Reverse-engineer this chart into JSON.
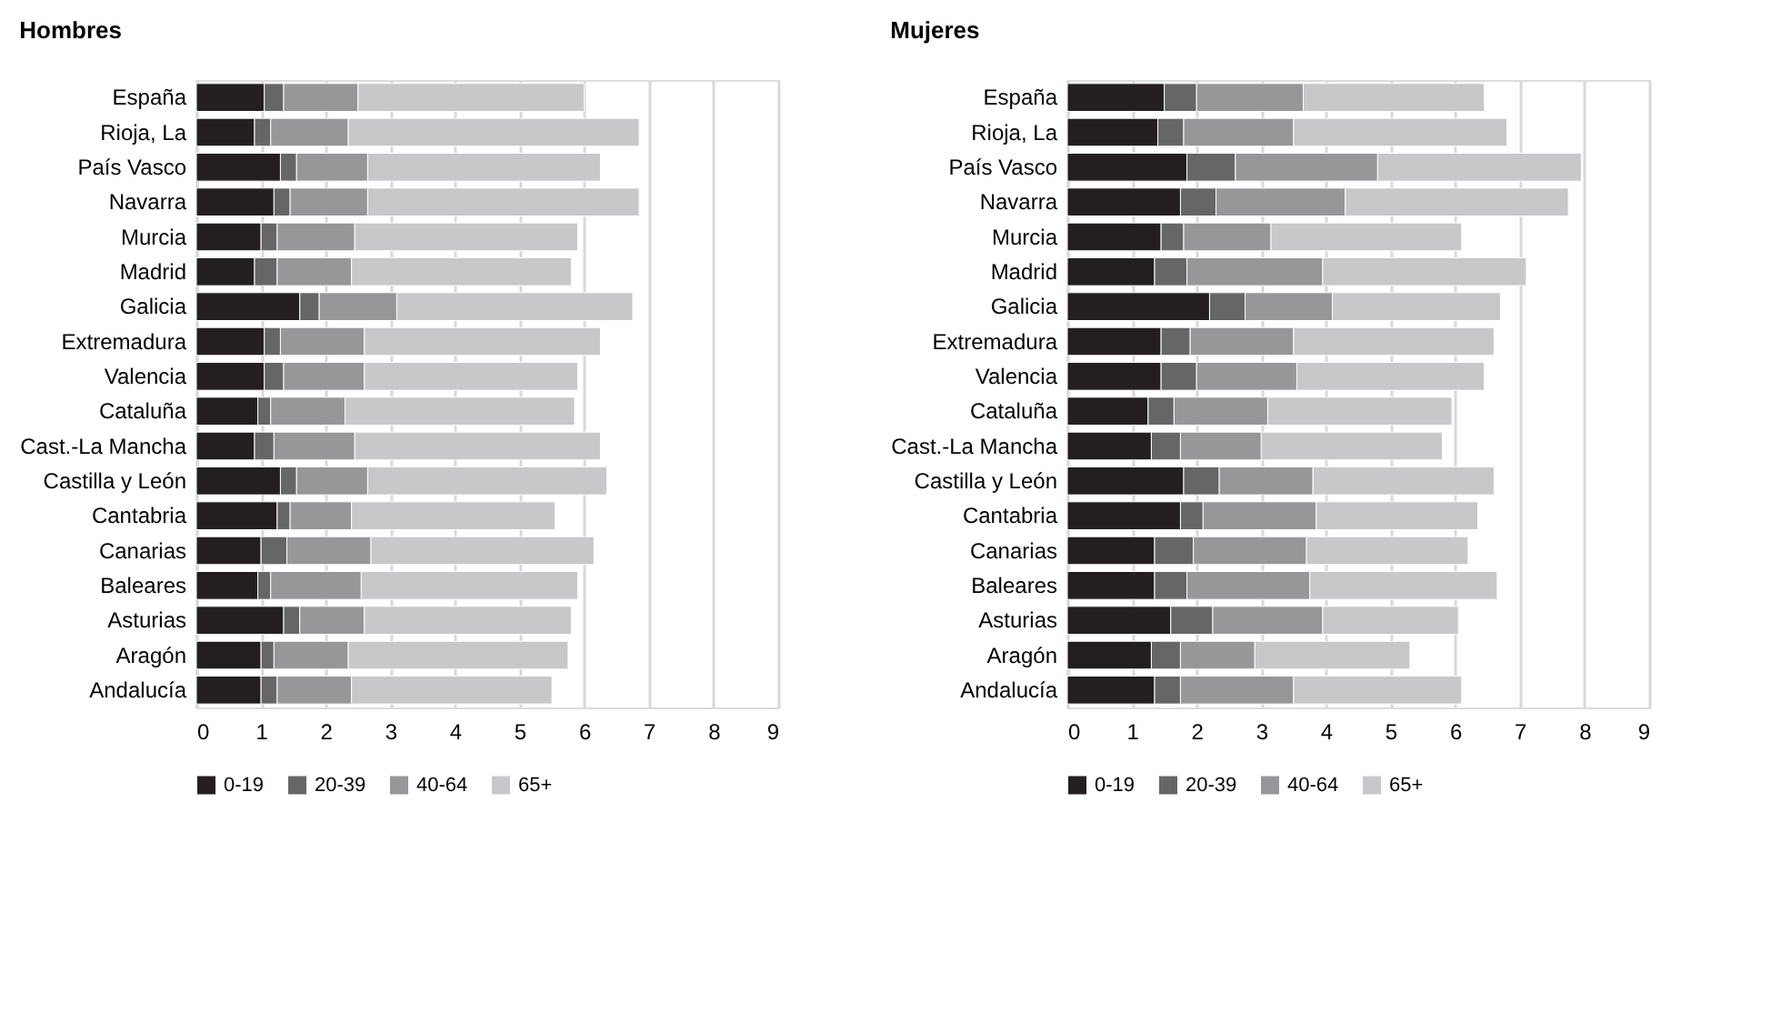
{
  "chart_data": [
    {
      "type": "bar",
      "title": "Hombres",
      "orientation": "horizontal",
      "stacked": true,
      "grid": "x",
      "legend": "bottom",
      "xlim": [
        0,
        9
      ],
      "xticks": [
        0,
        1,
        2,
        3,
        4,
        5,
        6,
        7,
        8,
        9
      ],
      "categories": [
        "España",
        "Rioja, La",
        "País Vasco",
        "Navarra",
        "Murcia",
        "Madrid",
        "Galicia",
        "Extremadura",
        "Valencia",
        "Cataluña",
        "Cast.-La Mancha",
        "Castilla y León",
        "Cantabria",
        "Canarias",
        "Baleares",
        "Asturias",
        "Aragón",
        "Andalucía"
      ],
      "series": [
        {
          "name": "0-19",
          "color": "#231f20",
          "values": [
            1.05,
            0.9,
            1.3,
            1.2,
            1.0,
            0.9,
            1.6,
            1.05,
            1.05,
            0.95,
            0.9,
            1.3,
            1.25,
            1.0,
            0.95,
            1.35,
            1.0,
            1.0
          ]
        },
        {
          "name": "20-39",
          "color": "#666666",
          "values": [
            0.3,
            0.25,
            0.25,
            0.25,
            0.25,
            0.35,
            0.3,
            0.25,
            0.3,
            0.2,
            0.3,
            0.25,
            0.2,
            0.4,
            0.2,
            0.25,
            0.2,
            0.25
          ]
        },
        {
          "name": "40-64",
          "color": "#97979a",
          "values": [
            1.15,
            1.2,
            1.1,
            1.2,
            1.2,
            1.15,
            1.2,
            1.3,
            1.25,
            1.15,
            1.25,
            1.1,
            0.95,
            1.3,
            1.4,
            1.0,
            1.15,
            1.15
          ]
        },
        {
          "name": "65+",
          "color": "#c8c8ca",
          "values": [
            3.5,
            4.5,
            3.6,
            4.2,
            3.45,
            3.4,
            3.65,
            3.65,
            3.3,
            3.55,
            3.8,
            3.7,
            3.15,
            3.45,
            3.35,
            3.2,
            3.4,
            3.1
          ]
        }
      ]
    },
    {
      "type": "bar",
      "title": "Mujeres",
      "orientation": "horizontal",
      "stacked": true,
      "grid": "x",
      "legend": "bottom",
      "xlim": [
        0,
        9
      ],
      "xticks": [
        0,
        1,
        2,
        3,
        4,
        5,
        6,
        7,
        8,
        9
      ],
      "categories": [
        "España",
        "Rioja, La",
        "País Vasco",
        "Navarra",
        "Murcia",
        "Madrid",
        "Galicia",
        "Extremadura",
        "Valencia",
        "Cataluña",
        "Cast.-La Mancha",
        "Castilla y León",
        "Cantabria",
        "Canarias",
        "Baleares",
        "Asturias",
        "Aragón",
        "Andalucía"
      ],
      "series": [
        {
          "name": "0-19",
          "color": "#231f20",
          "values": [
            1.5,
            1.4,
            1.85,
            1.75,
            1.45,
            1.35,
            2.2,
            1.45,
            1.45,
            1.25,
            1.3,
            1.8,
            1.75,
            1.35,
            1.35,
            1.6,
            1.3,
            1.35
          ]
        },
        {
          "name": "20-39",
          "color": "#666666",
          "values": [
            0.5,
            0.4,
            0.75,
            0.55,
            0.35,
            0.5,
            0.55,
            0.45,
            0.55,
            0.4,
            0.45,
            0.55,
            0.35,
            0.6,
            0.5,
            0.65,
            0.45,
            0.4
          ]
        },
        {
          "name": "40-64",
          "color": "#97979a",
          "values": [
            1.65,
            1.7,
            2.2,
            2.0,
            1.35,
            2.1,
            1.35,
            1.6,
            1.55,
            1.45,
            1.25,
            1.45,
            1.75,
            1.75,
            1.9,
            1.7,
            1.15,
            1.75
          ]
        },
        {
          "name": "65+",
          "color": "#c8c8ca",
          "values": [
            2.8,
            3.3,
            3.15,
            3.45,
            2.95,
            3.15,
            2.6,
            3.1,
            2.9,
            2.85,
            2.8,
            2.8,
            2.5,
            2.5,
            2.9,
            2.1,
            2.4,
            2.6
          ]
        }
      ]
    }
  ]
}
